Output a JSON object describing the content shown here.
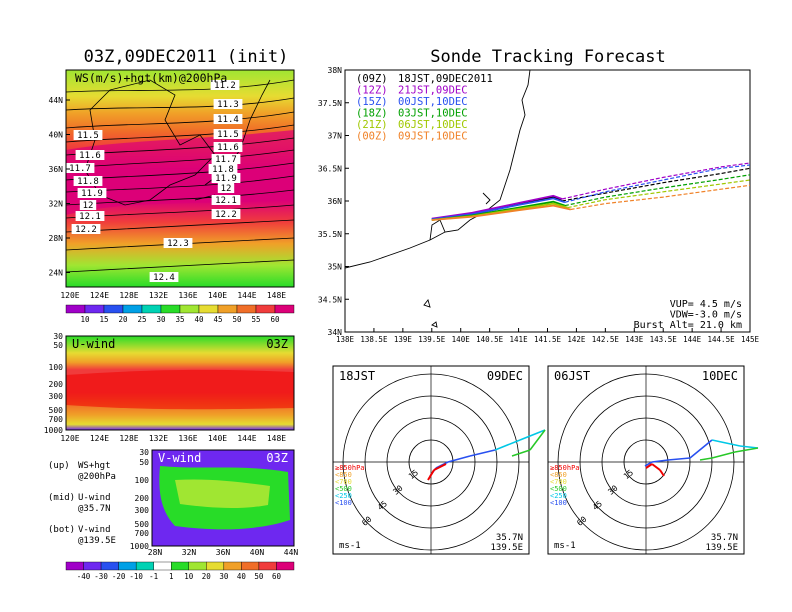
{
  "left_title": "03Z,09DEC2011 (init)",
  "right_title": "Sonde Tracking Forecast",
  "map_panel": {
    "label": "WS(m/s)+hgt(km)@200hPa",
    "lat_ticks": [
      "44N",
      "40N",
      "36N",
      "32N",
      "28N",
      "24N"
    ],
    "lon_ticks": [
      "120E",
      "124E",
      "128E",
      "132E",
      "136E",
      "140E",
      "144E",
      "148E"
    ],
    "contour_labels": [
      "11.2",
      "11.3",
      "11.4",
      "11.5",
      "11.6",
      "11.7",
      "11.8",
      "11.9",
      "12",
      "12.1",
      "12.2",
      "12.3",
      "12.4",
      "11.5",
      "11.6",
      "11.7",
      "11.8",
      "11.9",
      "12",
      "12.1",
      "12.2"
    ],
    "colorbar_ticks": [
      "10",
      "15",
      "20",
      "25",
      "30",
      "35",
      "40",
      "45",
      "50",
      "55",
      "60"
    ],
    "colorbar_colors": [
      "#a000c8",
      "#6e28f0",
      "#2850f0",
      "#00a0e6",
      "#00d2b4",
      "#28dc28",
      "#a0e632",
      "#e6dc32",
      "#f0a028",
      "#f06e28",
      "#f03c3c",
      "#dc0078"
    ]
  },
  "uwind_panel": {
    "label": "U-wind",
    "time": "03Z",
    "p_ticks": [
      "30",
      "50",
      "100",
      "200",
      "300",
      "500",
      "700",
      "1000"
    ],
    "lon_ticks": [
      "120E",
      "124E",
      "128E",
      "132E",
      "136E",
      "140E",
      "144E",
      "148E"
    ]
  },
  "vwind_panel": {
    "label": "V-wind",
    "time": "03Z",
    "p_ticks": [
      "30",
      "50",
      "100",
      "200",
      "300",
      "500",
      "700",
      "1000"
    ],
    "lat_ticks": [
      "28N",
      "32N",
      "36N",
      "40N",
      "44N"
    ]
  },
  "legend_notes": [
    {
      "k": "(up)",
      "v": "WS+hgt",
      "s": "@200hPa"
    },
    {
      "k": "(mid)",
      "v": "U-wind",
      "s": "@35.7N"
    },
    {
      "k": "(bot)",
      "v": "V-wind",
      "s": "@139.5E"
    }
  ],
  "wind_colorbar": {
    "ticks": [
      "-40",
      "-30",
      "-20",
      "-10",
      "-1",
      "1",
      "10",
      "20",
      "30",
      "40",
      "50",
      "60"
    ],
    "colors": [
      "#a000c8",
      "#6e28f0",
      "#2850f0",
      "#00a0e6",
      "#00d2b4",
      "#ffffff",
      "#28dc28",
      "#a0e632",
      "#e6dc32",
      "#f0a028",
      "#f06e28",
      "#f03c3c",
      "#dc0078"
    ]
  },
  "track_panel": {
    "lat_ticks": [
      "38N",
      "37.5N",
      "37N",
      "36.5N",
      "36N",
      "35.5N",
      "35N",
      "34.5N",
      "34N"
    ],
    "lon_ticks": [
      "138E",
      "138.5E",
      "139E",
      "139.5E",
      "140E",
      "140.5E",
      "141E",
      "141.5E",
      "142E",
      "142.5E",
      "143E",
      "143.5E",
      "144E",
      "144.5E",
      "145E"
    ],
    "legend": [
      {
        "code": "(09Z)",
        "label": "18JST,09DEC2011",
        "color": "#000000"
      },
      {
        "code": "(12Z)",
        "label": "21JST,09DEC",
        "color": "#a000c8"
      },
      {
        "code": "(15Z)",
        "label": "00JST,10DEC",
        "color": "#2850f0"
      },
      {
        "code": "(18Z)",
        "label": "03JST,10DEC",
        "color": "#00a000"
      },
      {
        "code": "(21Z)",
        "label": "06JST,10DEC",
        "color": "#a0c800"
      },
      {
        "code": "(00Z)",
        "label": "09JST,10DEC",
        "color": "#f08228"
      }
    ],
    "params": [
      "VUP= 4.5 m/s",
      "VDW=-3.0 m/s",
      "Burst Alt= 21.0 km"
    ]
  },
  "hodo_panels": [
    {
      "time": "18JST",
      "date": "09DEC",
      "lat": "35.7N",
      "lon": "139.5E",
      "unit": "ms-1"
    },
    {
      "time": "06JST",
      "date": "10DEC",
      "lat": "35.7N",
      "lon": "139.5E",
      "unit": "ms-1"
    }
  ],
  "hodo_rings": [
    "15",
    "30",
    "45",
    "60"
  ],
  "hodo_legend": [
    {
      "label": "≥850hPa",
      "color": "#f00000"
    },
    {
      "label": "<850",
      "color": "#f0a028"
    },
    {
      "label": "<700",
      "color": "#e6dc32"
    },
    {
      "label": "<500",
      "color": "#28c828"
    },
    {
      "label": "<250",
      "color": "#00c8e6"
    },
    {
      "label": "<100",
      "color": "#2850f0"
    }
  ],
  "chart_data": {
    "type": "line",
    "title": "Sonde Tracking Forecast",
    "x_range": [
      138.0,
      145.0
    ],
    "y_range": [
      34.0,
      38.0
    ],
    "xlabel": "",
    "ylabel": "",
    "series": [
      {
        "name": "18JST,09DEC2011",
        "x": [
          139.5,
          140.2,
          141.0,
          141.6,
          141.75,
          142.5,
          143.5,
          144.5,
          145.0
        ],
        "y": [
          35.72,
          35.8,
          35.95,
          36.06,
          36.0,
          36.12,
          36.28,
          36.42,
          36.5
        ]
      },
      {
        "name": "21JST,09DEC",
        "x": [
          139.5,
          140.2,
          141.0,
          141.6,
          141.75,
          142.5,
          143.5,
          144.5,
          145.0
        ],
        "y": [
          35.73,
          35.82,
          35.97,
          36.08,
          36.03,
          36.18,
          36.36,
          36.52,
          36.58
        ]
      },
      {
        "name": "00JST,10DEC",
        "x": [
          139.5,
          140.2,
          141.0,
          141.6,
          141.8,
          142.5,
          143.5,
          144.5,
          145.0
        ],
        "y": [
          35.72,
          35.8,
          35.94,
          36.04,
          35.98,
          36.14,
          36.32,
          36.5,
          36.55
        ]
      },
      {
        "name": "03JST,10DEC",
        "x": [
          139.5,
          140.2,
          141.0,
          141.6,
          141.8,
          142.5,
          143.5,
          144.5,
          145.0
        ],
        "y": [
          35.71,
          35.78,
          35.9,
          35.99,
          35.93,
          36.06,
          36.2,
          36.33,
          36.4
        ]
      },
      {
        "name": "06JST,10DEC",
        "x": [
          139.5,
          140.2,
          141.0,
          141.6,
          141.85,
          142.5,
          143.5,
          144.5,
          145.0
        ],
        "y": [
          35.71,
          35.77,
          35.88,
          35.96,
          35.9,
          36.02,
          36.14,
          36.26,
          36.32
        ]
      },
      {
        "name": "09JST,10DEC",
        "x": [
          139.5,
          140.2,
          141.0,
          141.6,
          141.9,
          142.5,
          143.5,
          144.5,
          145.0
        ],
        "y": [
          35.71,
          35.76,
          35.86,
          35.93,
          35.87,
          35.96,
          36.06,
          36.18,
          36.24
        ]
      }
    ]
  }
}
